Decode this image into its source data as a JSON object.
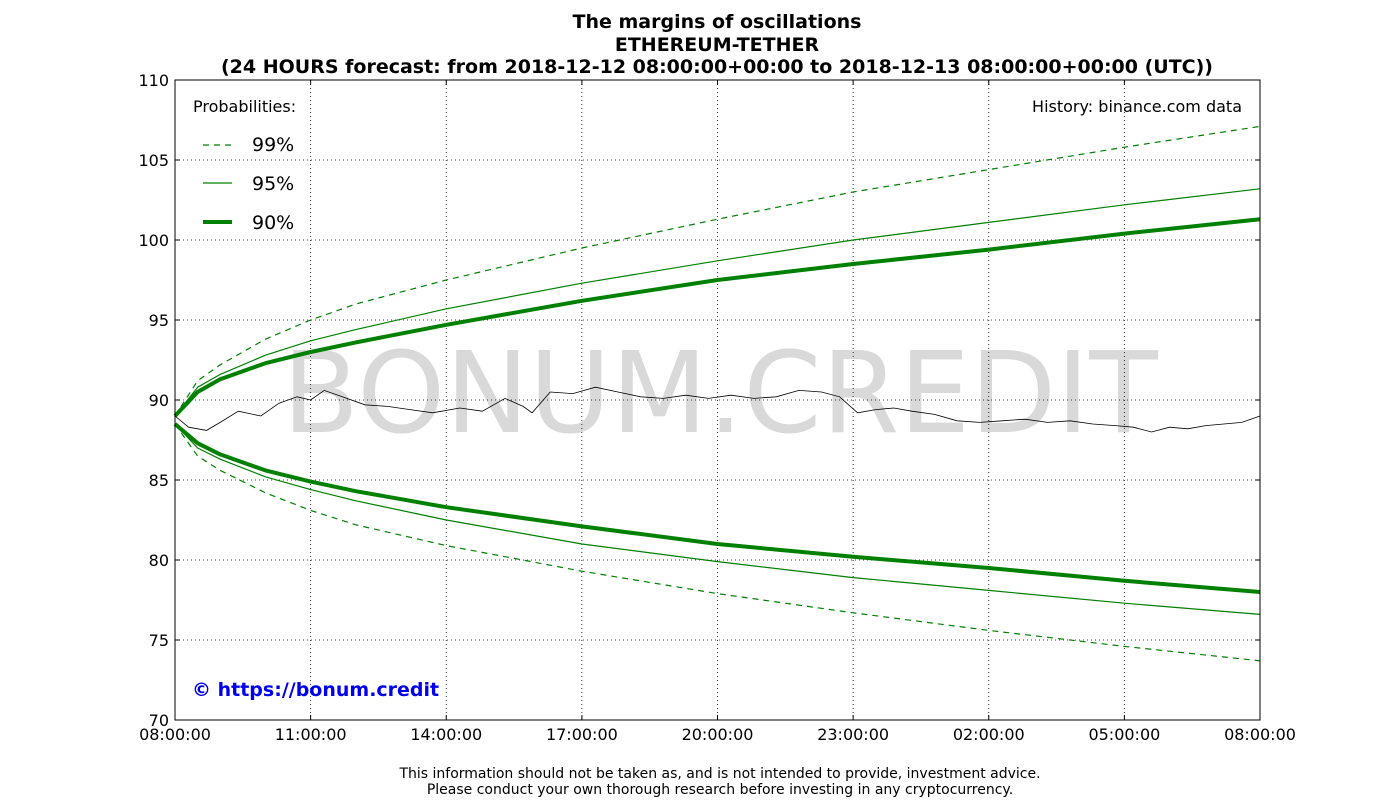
{
  "chart_data": {
    "type": "line",
    "title": [
      "The margins of oscillations",
      "ETHEREUM-TETHER",
      "(24 HOURS forecast: from 2018-12-12 08:00:00+00:00 to 2018-12-13 08:00:00+00:00 (UTC))"
    ],
    "x_ticks": [
      "08:00:00",
      "11:00:00",
      "14:00:00",
      "17:00:00",
      "20:00:00",
      "23:00:00",
      "02:00:00",
      "05:00:00",
      "08:00:00"
    ],
    "x_range_hours": [
      0,
      24
    ],
    "ylim": [
      70,
      110
    ],
    "y_ticks": [
      70,
      75,
      80,
      85,
      90,
      95,
      100,
      105,
      110
    ],
    "grid": true,
    "legend": {
      "title": "Probabilities:",
      "placement": "top-left",
      "entries": [
        {
          "label": "99%",
          "style": "dashed",
          "color": "#008000"
        },
        {
          "label": "95%",
          "style": "thin",
          "color": "#008000"
        },
        {
          "label": "90%",
          "style": "thick",
          "color": "#008000"
        }
      ]
    },
    "series": [
      {
        "name": "99%",
        "kind": "upper",
        "hours": [
          0,
          0.5,
          1,
          2,
          3,
          4,
          6,
          9,
          12,
          15,
          18,
          21,
          24
        ],
        "values": [
          89,
          91.2,
          92.2,
          93.8,
          95.0,
          96.0,
          97.5,
          99.5,
          101.3,
          103.0,
          104.4,
          105.8,
          107.1
        ]
      },
      {
        "name": "99%",
        "kind": "lower",
        "hours": [
          0,
          0.5,
          1,
          2,
          3,
          4,
          6,
          9,
          12,
          15,
          18,
          21,
          24
        ],
        "values": [
          88.5,
          86.5,
          85.6,
          84.2,
          83.1,
          82.2,
          80.9,
          79.3,
          77.9,
          76.7,
          75.6,
          74.6,
          73.7
        ]
      },
      {
        "name": "95%",
        "kind": "upper",
        "hours": [
          0,
          0.5,
          1,
          2,
          3,
          4,
          6,
          9,
          12,
          15,
          18,
          21,
          24
        ],
        "values": [
          89,
          90.8,
          91.6,
          92.8,
          93.7,
          94.4,
          95.7,
          97.3,
          98.7,
          100.0,
          101.1,
          102.2,
          103.2
        ]
      },
      {
        "name": "95%",
        "kind": "lower",
        "hours": [
          0,
          0.5,
          1,
          2,
          3,
          4,
          6,
          9,
          12,
          15,
          18,
          21,
          24
        ],
        "values": [
          88.5,
          87.0,
          86.3,
          85.2,
          84.4,
          83.7,
          82.5,
          81.0,
          79.9,
          78.9,
          78.1,
          77.3,
          76.6
        ]
      },
      {
        "name": "90%",
        "kind": "upper",
        "hours": [
          0,
          0.5,
          1,
          2,
          3,
          4,
          6,
          9,
          12,
          15,
          18,
          21,
          24
        ],
        "values": [
          89,
          90.5,
          91.3,
          92.3,
          93.0,
          93.6,
          94.7,
          96.2,
          97.5,
          98.5,
          99.4,
          100.4,
          101.3
        ]
      },
      {
        "name": "90%",
        "kind": "lower",
        "hours": [
          0,
          0.5,
          1,
          2,
          3,
          4,
          6,
          9,
          12,
          15,
          18,
          21,
          24
        ],
        "values": [
          88.5,
          87.3,
          86.6,
          85.6,
          84.9,
          84.3,
          83.3,
          82.1,
          81.0,
          80.2,
          79.5,
          78.7,
          78.0
        ]
      },
      {
        "name": "",
        "kind": "history",
        "hours": [
          0,
          0.3,
          0.7,
          1.0,
          1.4,
          1.9,
          2.3,
          2.7,
          3.0,
          3.3,
          3.7,
          4.2,
          4.7,
          5.2,
          5.7,
          6.3,
          6.8,
          7.3,
          7.7,
          7.9,
          8.3,
          8.8,
          9.3,
          9.8,
          10.3,
          10.8,
          11.3,
          11.8,
          12.3,
          12.8,
          13.3,
          13.8,
          14.3,
          14.7,
          15.1,
          15.5,
          15.9,
          16.3,
          16.8,
          17.3,
          17.8,
          18.3,
          18.8,
          19.3,
          19.8,
          20.3,
          20.8,
          21.2,
          21.6,
          22.0,
          22.4,
          22.8,
          23.2,
          23.6,
          24.0
        ],
        "values": [
          89.0,
          88.3,
          88.1,
          88.6,
          89.3,
          89.0,
          89.8,
          90.2,
          90.0,
          90.6,
          90.2,
          89.7,
          89.6,
          89.4,
          89.2,
          89.5,
          89.3,
          90.1,
          89.6,
          89.2,
          90.5,
          90.4,
          90.8,
          90.5,
          90.2,
          90.1,
          90.3,
          90.1,
          90.3,
          90.1,
          90.2,
          90.6,
          90.5,
          90.2,
          89.2,
          89.4,
          89.5,
          89.3,
          89.1,
          88.7,
          88.6,
          88.7,
          88.8,
          88.6,
          88.7,
          88.5,
          88.4,
          88.3,
          88.0,
          88.3,
          88.2,
          88.4,
          88.5,
          88.6,
          89.0
        ]
      }
    ],
    "annotation": "History: binance.com data",
    "watermark": "BONUM.CREDIT",
    "copyright": "© https://bonum.credit",
    "disclaimer": [
      "This information should not be taken as, and is not intended to provide, investment advice.",
      "Please conduct your own thorough research before investing in any cryptocurrency."
    ],
    "colors": {
      "band": "#008000",
      "history": "#000000",
      "copyright": "#0000ee"
    }
  }
}
